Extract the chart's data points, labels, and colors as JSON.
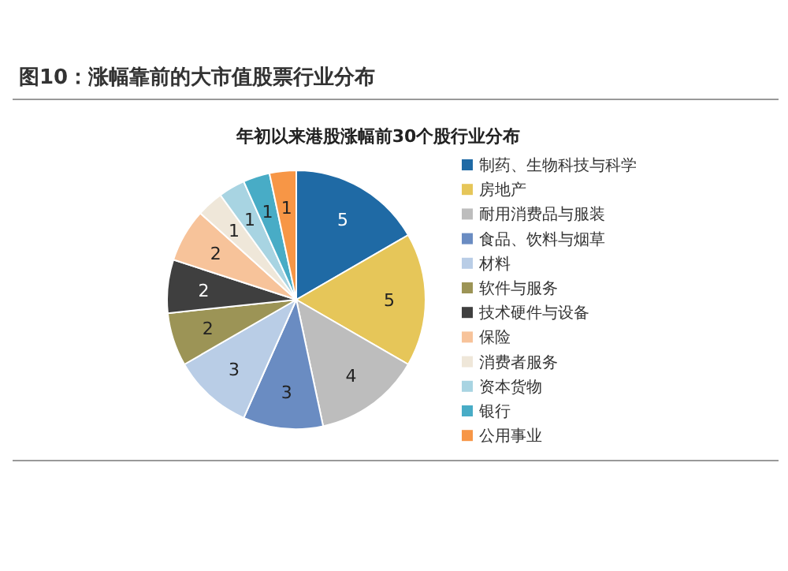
{
  "chart_data": {
    "type": "pie",
    "title": "图10：涨幅靠前的大市值股票行业分布",
    "subtitle": "年初以来港股涨幅前30个股行业分布",
    "categories": [
      "制药、生物科技与科学",
      "房地产",
      "耐用消费品与服装",
      "食品、饮料与烟草",
      "材料",
      "软件与服务",
      "技术硬件与设备",
      "保险",
      "消费者服务",
      "资本货物",
      "银行",
      "公用事业"
    ],
    "values": [
      5,
      5,
      4,
      3,
      3,
      2,
      2,
      2,
      1,
      1,
      1,
      1
    ],
    "colors": [
      "#1f6aa5",
      "#e6c659",
      "#bdbdbd",
      "#6a8cc2",
      "#b9cde6",
      "#9c9456",
      "#3f3f3f",
      "#f7c39a",
      "#efe7d9",
      "#a8d4e2",
      "#48acc6",
      "#f79646"
    ],
    "data_labels": true,
    "legend": "right"
  }
}
